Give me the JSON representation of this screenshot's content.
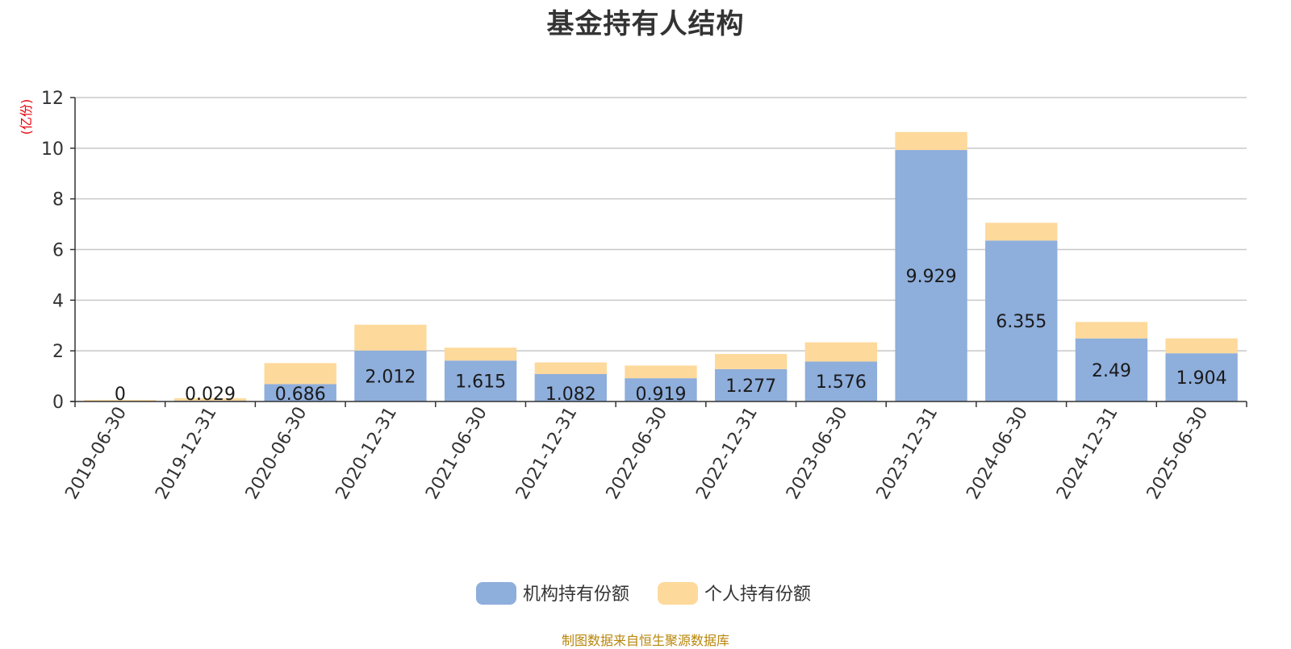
{
  "chart_data": {
    "type": "bar",
    "stacked": true,
    "title": "基金持有人结构",
    "ylabel": "(亿份)",
    "xlabel": "",
    "ylim": [
      0,
      12
    ],
    "yticks": [
      0,
      2,
      4,
      6,
      8,
      10,
      12
    ],
    "grid": true,
    "legend_position": "bottom",
    "categories": [
      "2019-06-30",
      "2019-12-31",
      "2020-06-30",
      "2020-12-31",
      "2021-06-30",
      "2021-12-31",
      "2022-06-30",
      "2022-12-31",
      "2023-06-30",
      "2023-12-31",
      "2024-06-30",
      "2024-12-31",
      "2025-06-30"
    ],
    "series": [
      {
        "name": "机构持有份额",
        "color": "#8eaedc",
        "values": [
          0,
          0.029,
          0.686,
          2.012,
          1.615,
          1.082,
          0.919,
          1.277,
          1.576,
          9.929,
          6.355,
          2.49,
          1.904
        ],
        "labels": [
          "0",
          "0.029",
          "0.686",
          "2.012",
          "1.615",
          "1.082",
          "0.919",
          "1.277",
          "1.576",
          "9.929",
          "6.355",
          "2.49",
          "1.904"
        ]
      },
      {
        "name": "个人持有份额",
        "color": "#fdd99b",
        "values": [
          0.06,
          0.1,
          0.83,
          1.02,
          0.51,
          0.46,
          0.5,
          0.6,
          0.76,
          0.71,
          0.7,
          0.65,
          0.59
        ]
      }
    ]
  },
  "source_note": "制图数据来自恒生聚源数据库"
}
